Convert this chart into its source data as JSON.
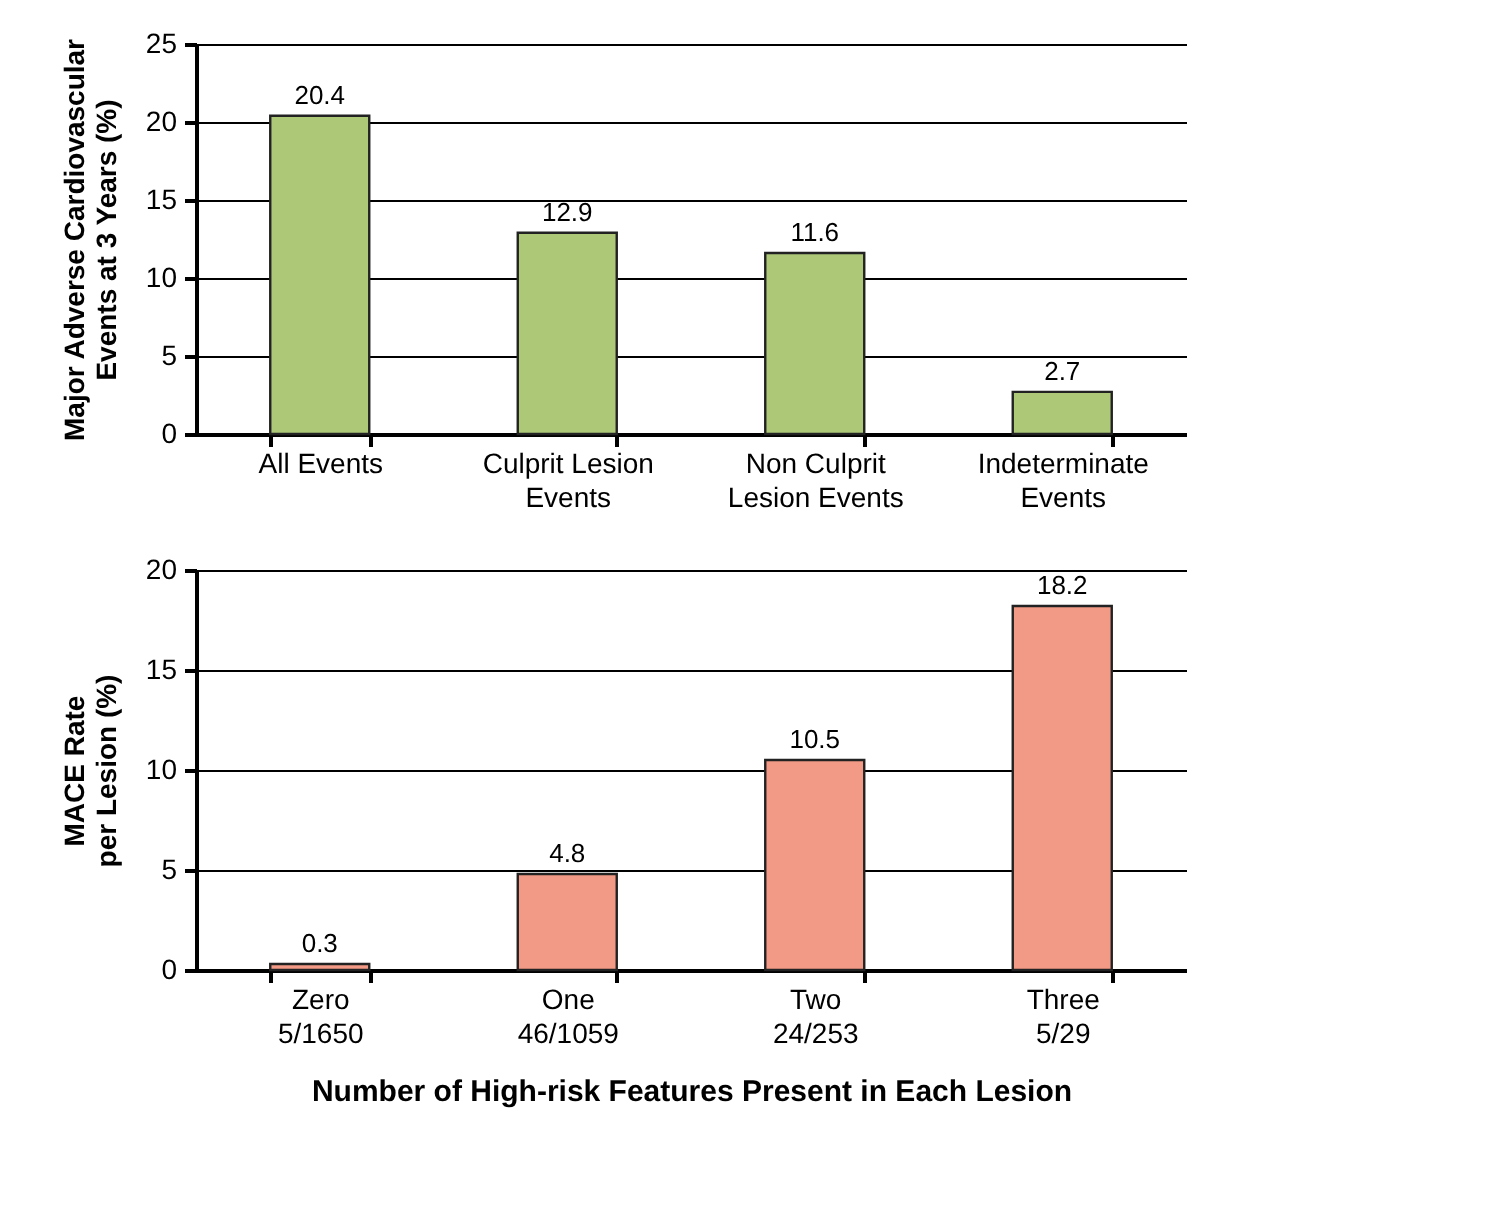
{
  "chart_data": [
    {
      "type": "bar",
      "ylabel": "Major Adverse Cardiovascular\nEvents at 3 Years (%)",
      "categories": [
        "All Events",
        "Culprit Lesion\nEvents",
        "Non Culprit\nLesion Events",
        "Indeterminate\nEvents"
      ],
      "values": [
        20.4,
        12.9,
        11.6,
        2.7
      ],
      "color": "#adc978",
      "ylim": [
        0,
        25
      ],
      "yticks": [
        0,
        5,
        10,
        15,
        20,
        25
      ],
      "grid": "y",
      "data_labels": true
    },
    {
      "type": "bar",
      "ylabel": "MACE Rate\nper Lesion (%)",
      "xlabel": "Number of High-risk Features Present in Each Lesion",
      "categories": [
        "Zero\n5/1650",
        "One\n46/1059",
        "Two\n24/253",
        "Three\n5/29"
      ],
      "values": [
        0.3,
        4.8,
        10.5,
        18.2
      ],
      "color": "#f29a85",
      "ylim": [
        0,
        20
      ],
      "yticks": [
        0,
        5,
        10,
        15,
        20
      ],
      "grid": "y",
      "data_labels": true
    }
  ]
}
